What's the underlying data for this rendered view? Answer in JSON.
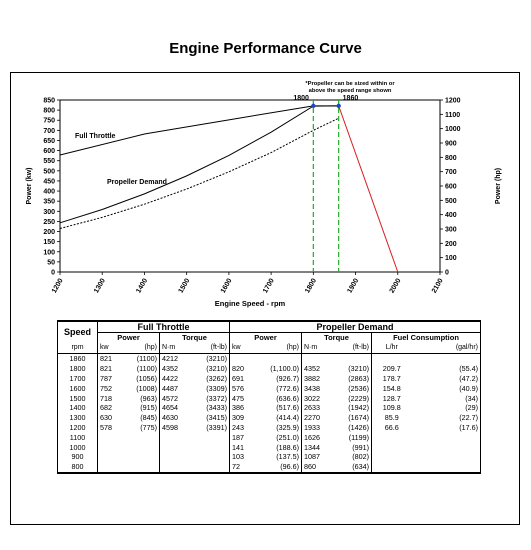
{
  "title": "Engine Performance Curve",
  "chart_data": {
    "type": "line",
    "xlabel": "Engine Speed - rpm",
    "ylabel_left": "Power (kw)",
    "ylabel_right": "Power (hp)",
    "xlim": [
      1200,
      2100
    ],
    "x_ticks": [
      1200,
      1300,
      1400,
      1500,
      1600,
      1700,
      1800,
      1900,
      2000,
      2100
    ],
    "ylim_left": [
      0,
      850
    ],
    "y_ticks_left": [
      0,
      50,
      100,
      150,
      200,
      250,
      300,
      350,
      400,
      450,
      500,
      550,
      600,
      650,
      700,
      750,
      800,
      850
    ],
    "ylim_right": [
      0,
      1200
    ],
    "y_ticks_right": [
      0,
      100,
      200,
      300,
      400,
      500,
      600,
      700,
      800,
      900,
      1000,
      1100,
      1200
    ],
    "note": "*Propeller can be sized within or above the speed range shown",
    "series": [
      {
        "name": "Full Throttle",
        "color": "#000000",
        "style": "solid",
        "x": [
          1200,
          1400,
          1600,
          1800,
          1860
        ],
        "y": [
          578,
          682,
          752,
          821,
          821
        ]
      },
      {
        "name": "Propeller Demand",
        "color": "#000000",
        "style": "solid",
        "x": [
          1200,
          1300,
          1400,
          1500,
          1600,
          1700,
          1800,
          1860
        ],
        "y": [
          243,
          309,
          386,
          475,
          576,
          691,
          820,
          821
        ]
      },
      {
        "name": "",
        "color": "#000000",
        "style": "dotted",
        "x": [
          1200,
          1300,
          1400,
          1500,
          1600,
          1700,
          1800,
          1860
        ],
        "y": [
          215,
          270,
          335,
          410,
          495,
          590,
          700,
          760
        ]
      },
      {
        "name": "",
        "color": "#d81e1e",
        "style": "solid",
        "x": [
          1860,
          2000
        ],
        "y": [
          821,
          0
        ]
      }
    ],
    "markers": [
      {
        "label": "1800",
        "x": 1800,
        "y": 821,
        "color": "#2244cc"
      },
      {
        "label": "1860",
        "x": 1860,
        "y": 821,
        "color": "#2244cc"
      }
    ],
    "reference_lines": [
      {
        "x": 1800,
        "color": "#22aa22",
        "style": "dashed"
      },
      {
        "x": 1860,
        "color": "#22aa22",
        "style": "dashed"
      }
    ]
  },
  "table": {
    "speed_label": "Speed",
    "full_throttle_label": "Full Throttle",
    "propeller_demand_label": "Propeller Demand",
    "subheaders": {
      "power": "Power",
      "torque": "Torque",
      "fuel": "Fuel Consumption"
    },
    "units": [
      "rpm",
      "kw",
      "(hp)",
      "N·m",
      "(ft-lb)",
      "kw",
      "(hp)",
      "N·m",
      "(ft-lb)",
      "L/hr",
      "(gal/hr)"
    ],
    "rows": [
      [
        "1860",
        "821",
        "(1100)",
        "4212",
        "(3210)",
        "",
        "",
        "",
        "",
        "",
        ""
      ],
      [
        "1800",
        "821",
        "(1100)",
        "4352",
        "(3210)",
        "820",
        "(1,100.0)",
        "4352",
        "(3210)",
        "209.7",
        "(55.4)"
      ],
      [
        "1700",
        "787",
        "(1056)",
        "4422",
        "(3262)",
        "691",
        "(926.7)",
        "3882",
        "(2863)",
        "178.7",
        "(47.2)"
      ],
      [
        "1600",
        "752",
        "(1008)",
        "4487",
        "(3309)",
        "576",
        "(772.6)",
        "3438",
        "(2536)",
        "154.8",
        "(40.9)"
      ],
      [
        "1500",
        "718",
        "(963)",
        "4572",
        "(3372)",
        "475",
        "(636.6)",
        "3022",
        "(2229)",
        "128.7",
        "(34)"
      ],
      [
        "1400",
        "682",
        "(915)",
        "4654",
        "(3433)",
        "386",
        "(517.6)",
        "2633",
        "(1942)",
        "109.8",
        "(29)"
      ],
      [
        "1300",
        "630",
        "(845)",
        "4630",
        "(3415)",
        "309",
        "(414.4)",
        "2270",
        "(1674)",
        "85.9",
        "(22.7)"
      ],
      [
        "1200",
        "578",
        "(775)",
        "4598",
        "(3391)",
        "243",
        "(325.9)",
        "1933",
        "(1426)",
        "66.6",
        "(17.6)"
      ],
      [
        "1100",
        "",
        "",
        "",
        "",
        "187",
        "(251.0)",
        "1626",
        "(1199)",
        "",
        ""
      ],
      [
        "1000",
        "",
        "",
        "",
        "",
        "141",
        "(188.6)",
        "1344",
        "(991)",
        "",
        ""
      ],
      [
        "900",
        "",
        "",
        "",
        "",
        "103",
        "(137.5)",
        "1087",
        "(802)",
        "",
        ""
      ],
      [
        "800",
        "",
        "",
        "",
        "",
        "72",
        "(96.6)",
        "860",
        "(634)",
        "",
        ""
      ]
    ]
  }
}
